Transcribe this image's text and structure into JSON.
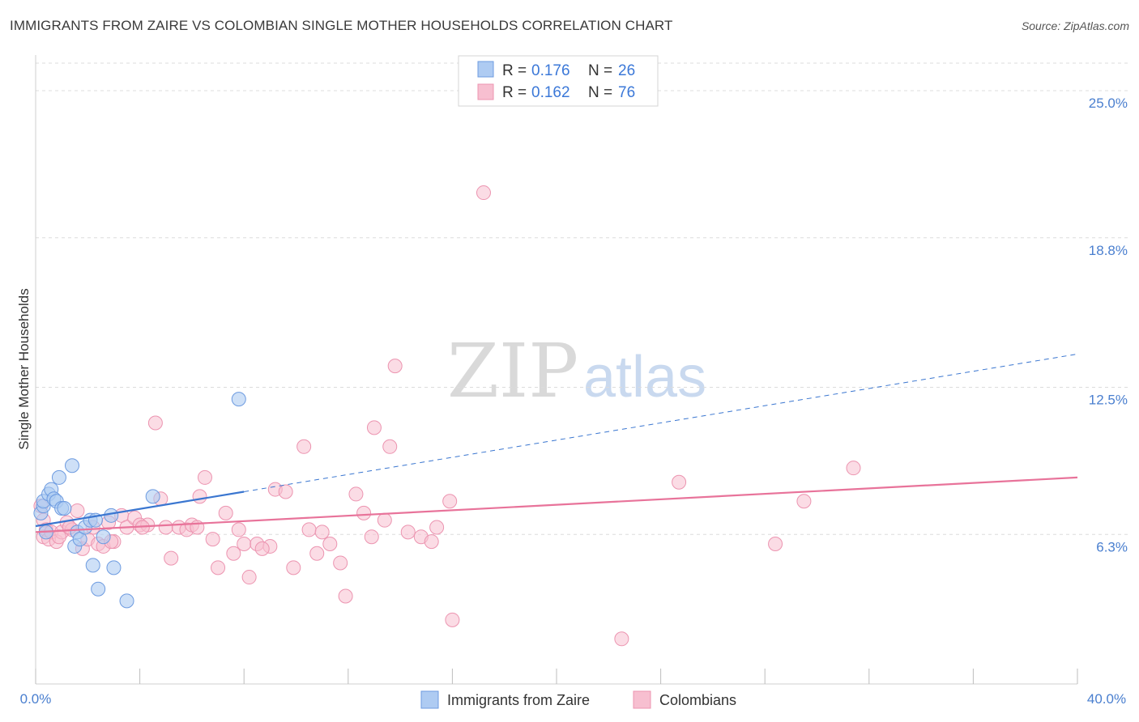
{
  "header": {
    "title": "IMMIGRANTS FROM ZAIRE VS COLOMBIAN SINGLE MOTHER HOUSEHOLDS CORRELATION CHART",
    "source": "Source: ZipAtlas.com"
  },
  "watermark": {
    "zip": "ZIP",
    "atlas": "atlas"
  },
  "legend": {
    "series": [
      {
        "r_label": "R =",
        "r_value": "0.176",
        "n_label": "N =",
        "n_value": "26"
      },
      {
        "r_label": "R =",
        "r_value": "0.162",
        "n_label": "N =",
        "n_value": "76"
      }
    ]
  },
  "chart_data": {
    "type": "scatter",
    "title": "IMMIGRANTS FROM ZAIRE VS COLOMBIAN SINGLE MOTHER HOUSEHOLDS CORRELATION CHART",
    "xlabel": "",
    "ylabel": "Single Mother Households",
    "xlim": [
      0,
      40
    ],
    "ylim": [
      0,
      26.5
    ],
    "x_tick_labels": [
      "0.0%",
      "40.0%"
    ],
    "y_ticks": [
      6.3,
      12.5,
      18.8,
      25.0
    ],
    "y_tick_labels": [
      "6.3%",
      "12.5%",
      "18.8%",
      "25.0%"
    ],
    "grid": true,
    "colors": {
      "zaire_fill": "#aecbf2",
      "zaire_stroke": "#6d9be0",
      "zaire_line": "#3a76d0",
      "colombian_fill": "#f7bfd0",
      "colombian_stroke": "#ec94b0",
      "colombian_line": "#e8739a",
      "tick_text": "#4a7fcf"
    },
    "series": [
      {
        "name": "Immigrants from Zaire",
        "r": 0.176,
        "n": 26,
        "trend": {
          "x0": 0.0,
          "y0": 6.65,
          "x1": 40.0,
          "y1": 13.9,
          "solid_until_x": 8.0
        },
        "points": [
          [
            0.2,
            7.2
          ],
          [
            0.3,
            7.5
          ],
          [
            0.3,
            7.7
          ],
          [
            0.4,
            6.4
          ],
          [
            0.5,
            8.0
          ],
          [
            0.6,
            8.2
          ],
          [
            0.7,
            7.8
          ],
          [
            0.8,
            7.7
          ],
          [
            0.9,
            8.7
          ],
          [
            1.0,
            7.4
          ],
          [
            1.1,
            7.4
          ],
          [
            1.4,
            9.2
          ],
          [
            1.5,
            5.8
          ],
          [
            1.6,
            6.4
          ],
          [
            1.7,
            6.1
          ],
          [
            1.9,
            6.6
          ],
          [
            2.1,
            6.9
          ],
          [
            2.2,
            5.0
          ],
          [
            2.3,
            6.9
          ],
          [
            2.4,
            4.0
          ],
          [
            2.6,
            6.2
          ],
          [
            2.9,
            7.1
          ],
          [
            3.0,
            4.9
          ],
          [
            3.5,
            3.5
          ],
          [
            4.5,
            7.9
          ],
          [
            7.8,
            12.0
          ]
        ]
      },
      {
        "name": "Colombians",
        "r": 0.162,
        "n": 76,
        "trend": {
          "x0": 0.0,
          "y0": 6.4,
          "x1": 40.0,
          "y1": 8.7
        },
        "points": [
          [
            0.2,
            7.5
          ],
          [
            0.3,
            6.2
          ],
          [
            0.3,
            6.9
          ],
          [
            0.4,
            6.5
          ],
          [
            0.5,
            6.1
          ],
          [
            0.6,
            6.4
          ],
          [
            0.8,
            6.0
          ],
          [
            1.0,
            6.4
          ],
          [
            1.2,
            6.8
          ],
          [
            1.4,
            6.5
          ],
          [
            1.6,
            7.3
          ],
          [
            1.8,
            5.7
          ],
          [
            2.0,
            6.1
          ],
          [
            2.2,
            6.6
          ],
          [
            2.4,
            5.9
          ],
          [
            2.6,
            5.8
          ],
          [
            2.8,
            6.8
          ],
          [
            3.0,
            6.0
          ],
          [
            3.3,
            7.1
          ],
          [
            3.5,
            6.6
          ],
          [
            3.8,
            7.0
          ],
          [
            4.0,
            6.7
          ],
          [
            4.3,
            6.7
          ],
          [
            4.6,
            11.0
          ],
          [
            4.8,
            7.8
          ],
          [
            5.0,
            6.6
          ],
          [
            5.2,
            5.3
          ],
          [
            5.5,
            6.6
          ],
          [
            5.8,
            6.5
          ],
          [
            6.0,
            6.7
          ],
          [
            6.3,
            7.9
          ],
          [
            6.5,
            8.7
          ],
          [
            6.8,
            6.1
          ],
          [
            7.0,
            4.9
          ],
          [
            7.3,
            7.2
          ],
          [
            7.6,
            5.5
          ],
          [
            7.8,
            6.5
          ],
          [
            8.0,
            5.9
          ],
          [
            8.2,
            4.5
          ],
          [
            8.5,
            5.9
          ],
          [
            9.0,
            5.8
          ],
          [
            9.2,
            8.2
          ],
          [
            9.6,
            8.1
          ],
          [
            9.9,
            4.9
          ],
          [
            10.3,
            10.0
          ],
          [
            10.5,
            6.5
          ],
          [
            10.8,
            5.5
          ],
          [
            11.0,
            6.4
          ],
          [
            11.3,
            5.9
          ],
          [
            11.7,
            5.1
          ],
          [
            11.9,
            3.7
          ],
          [
            12.3,
            8.0
          ],
          [
            12.6,
            7.2
          ],
          [
            12.9,
            6.2
          ],
          [
            13.0,
            10.8
          ],
          [
            13.4,
            6.9
          ],
          [
            13.6,
            10.0
          ],
          [
            13.8,
            13.4
          ],
          [
            14.3,
            6.4
          ],
          [
            14.8,
            6.2
          ],
          [
            15.2,
            6.0
          ],
          [
            15.4,
            6.6
          ],
          [
            15.9,
            7.7
          ],
          [
            16.0,
            2.7
          ],
          [
            17.2,
            20.7
          ],
          [
            22.5,
            1.9
          ],
          [
            24.7,
            8.5
          ],
          [
            28.4,
            5.9
          ],
          [
            29.5,
            7.7
          ],
          [
            31.4,
            9.1
          ],
          [
            2.9,
            6.0
          ],
          [
            4.1,
            6.6
          ],
          [
            6.2,
            6.6
          ],
          [
            8.7,
            5.7
          ],
          [
            0.9,
            6.2
          ],
          [
            1.3,
            6.6
          ]
        ]
      }
    ]
  },
  "bottom_legend": [
    {
      "label": "Immigrants from Zaire"
    },
    {
      "label": "Colombians"
    }
  ]
}
